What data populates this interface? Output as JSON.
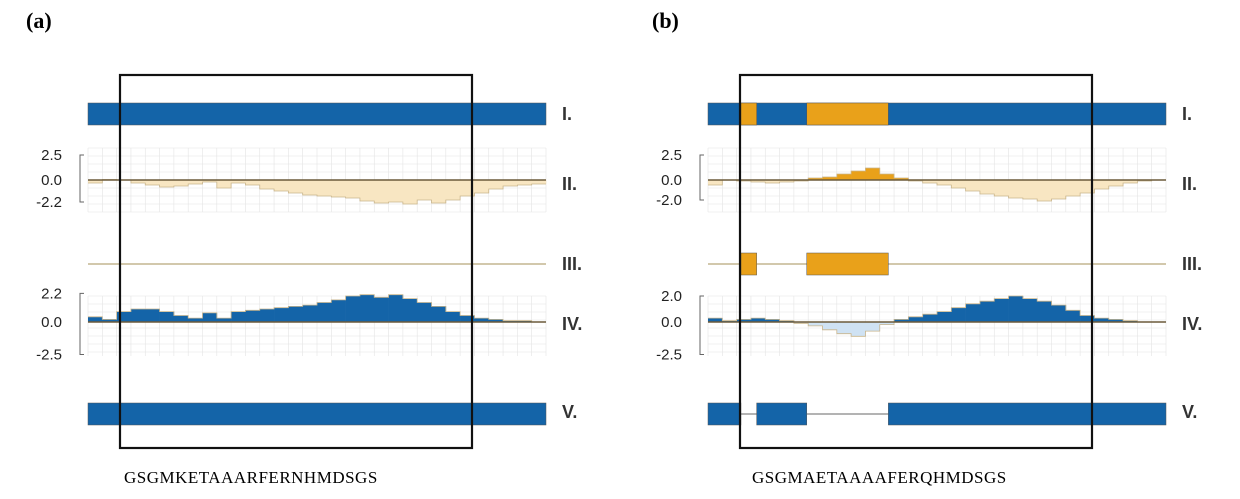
{
  "panels": [
    {
      "letter": "(a)",
      "sequence": "GSGMKETAAARFERNHMDSGS"
    },
    {
      "letter": "(b)",
      "sequence": "GSGMAETAAAAFERQHMDSGS"
    }
  ],
  "colors": {
    "structure_blue": "#1464a8",
    "disorder_orange": "#e9a11a",
    "hydro_beige": "#f8e6c2",
    "negative_lightblue": "#cfe2f3",
    "grid": "#e4e4e4",
    "baseline": "#6b5a3a"
  },
  "chart_data": [
    {
      "type": "area",
      "panel": "(a)",
      "n_positions": 32,
      "row_labels": [
        "I.",
        "II.",
        "III.",
        "IV.",
        "V."
      ],
      "track_I_segments": [
        [
          0,
          32,
          "structure"
        ]
      ],
      "track_II": {
        "tick_labels": [
          "2.5",
          "0.0",
          "-2.2"
        ],
        "ylim": [
          -2.2,
          2.5
        ],
        "values": [
          -0.3,
          0.05,
          0.0,
          -0.3,
          -0.5,
          -0.7,
          -0.6,
          -0.4,
          -0.2,
          -0.8,
          -0.3,
          -0.5,
          -0.9,
          -1.1,
          -1.3,
          -1.5,
          -1.6,
          -1.7,
          -1.8,
          -2.1,
          -2.3,
          -2.2,
          -2.4,
          -2.0,
          -2.3,
          -2.0,
          -1.6,
          -1.3,
          -0.9,
          -0.6,
          -0.5,
          -0.4
        ]
      },
      "track_III_segments": [],
      "track_IV": {
        "tick_labels": [
          "2.2",
          "0.0",
          "-2.5"
        ],
        "ylim": [
          -2.5,
          2.2
        ],
        "values": [
          0.4,
          0.2,
          0.8,
          1.0,
          1.0,
          0.8,
          0.5,
          0.3,
          0.7,
          0.3,
          0.8,
          0.9,
          1.0,
          1.1,
          1.2,
          1.3,
          1.5,
          1.7,
          2.0,
          2.1,
          1.9,
          2.1,
          1.8,
          1.5,
          1.2,
          0.8,
          0.5,
          0.3,
          0.2,
          0.1,
          0.1,
          0.0
        ]
      },
      "track_V_segments": [
        [
          0,
          32,
          "structure"
        ]
      ],
      "highlight_window": [
        2.3,
        26.7
      ]
    },
    {
      "type": "area",
      "panel": "(b)",
      "n_positions": 32,
      "row_labels": [
        "I.",
        "II.",
        "III.",
        "IV.",
        "V."
      ],
      "track_I_segments": [
        [
          0,
          32,
          "structure"
        ],
        [
          2.3,
          3.4,
          "disorder"
        ],
        [
          6.9,
          12.6,
          "disorder"
        ]
      ],
      "track_II": {
        "tick_labels": [
          "2.5",
          "0.0",
          "-2.0"
        ],
        "ylim": [
          -2.0,
          2.5
        ],
        "values": [
          -0.5,
          0.0,
          -0.1,
          -0.2,
          -0.3,
          -0.2,
          -0.1,
          0.2,
          0.3,
          0.6,
          0.9,
          1.2,
          0.6,
          0.2,
          -0.1,
          -0.3,
          -0.5,
          -0.8,
          -1.1,
          -1.4,
          -1.6,
          -1.8,
          -1.9,
          -2.1,
          -1.9,
          -1.6,
          -1.3,
          -0.9,
          -0.6,
          -0.3,
          -0.1,
          0.0
        ]
      },
      "track_III_segments": [
        [
          2.3,
          3.4,
          "disorder"
        ],
        [
          6.9,
          12.6,
          "disorder"
        ]
      ],
      "track_IV": {
        "tick_labels": [
          "2.0",
          "0.0",
          "-2.5"
        ],
        "ylim": [
          -2.5,
          2.0
        ],
        "values": [
          0.3,
          0.1,
          0.2,
          0.3,
          0.2,
          0.1,
          -0.1,
          -0.3,
          -0.6,
          -0.9,
          -1.1,
          -0.7,
          -0.2,
          0.2,
          0.4,
          0.6,
          0.8,
          1.1,
          1.4,
          1.6,
          1.8,
          2.0,
          1.8,
          1.6,
          1.3,
          0.9,
          0.5,
          0.3,
          0.2,
          0.1,
          0.0,
          0.0
        ]
      },
      "track_V_segments": [
        [
          0,
          2.3,
          "structure"
        ],
        [
          3.4,
          6.9,
          "structure"
        ],
        [
          12.6,
          32,
          "structure"
        ]
      ],
      "highlight_window": [
        2.3,
        26.7
      ]
    }
  ]
}
